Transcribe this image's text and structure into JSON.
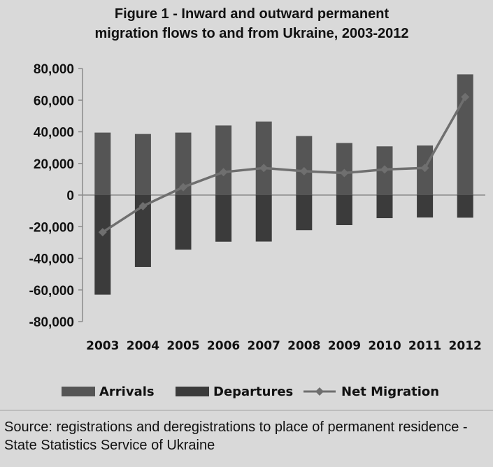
{
  "title_line1": "Figure 1 - Inward and outward permanent",
  "title_line2": "migration flows to and from Ukraine, 2003-2012",
  "source_text": "Source: registrations and deregistrations to place of permanent residence - State Statistics Service of Ukraine",
  "colors": {
    "arrivals": "#555555",
    "departures": "#3b3b3b",
    "net": "#6f6f6f",
    "background": "#d9d9d9",
    "axis": "#8a8a8a"
  },
  "chart_data": {
    "type": "bar",
    "title": "Figure 1 - Inward and outward permanent migration flows to and from Ukraine, 2003-2012",
    "categories": [
      "2003",
      "2004",
      "2005",
      "2006",
      "2007",
      "2008",
      "2009",
      "2010",
      "2011",
      "2012"
    ],
    "series": [
      {
        "name": "Arrivals",
        "type": "bar",
        "values": [
          39500,
          38600,
          39500,
          44000,
          46500,
          37300,
          32900,
          30800,
          31300,
          76300
        ]
      },
      {
        "name": "Departures",
        "type": "bar",
        "values": [
          -63000,
          -45500,
          -34500,
          -29500,
          -29400,
          -22200,
          -19000,
          -14600,
          -14200,
          -14300
        ]
      },
      {
        "name": "Net Migration",
        "type": "line",
        "marker": "diamond",
        "values": [
          -23500,
          -7000,
          5000,
          14500,
          17100,
          15100,
          13900,
          16200,
          17100,
          62000
        ]
      }
    ],
    "ylim": [
      -80000,
      80000
    ],
    "yticks": [
      "80,000",
      "60,000",
      "40,000",
      "20,000",
      "0",
      "-20,000",
      "-40,000",
      "-60,000",
      "-80,000"
    ],
    "ytick_values": [
      80000,
      60000,
      40000,
      20000,
      0,
      -20000,
      -40000,
      -60000,
      -80000
    ],
    "legend": "bottom",
    "grid": false
  }
}
